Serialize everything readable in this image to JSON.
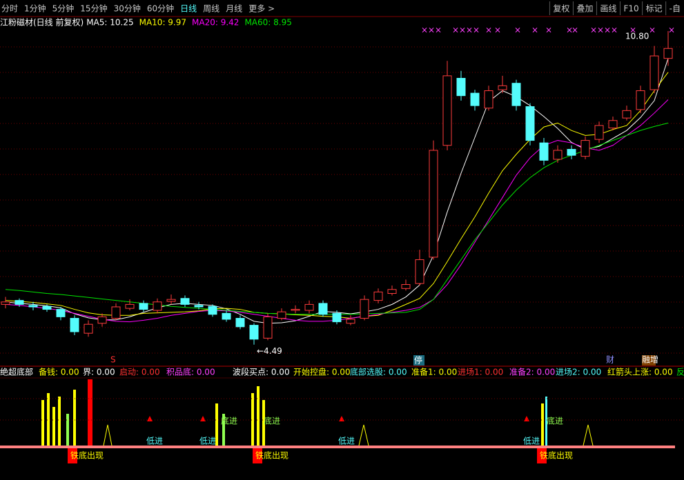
{
  "toolbar": {
    "left": [
      "分时",
      "1分钟",
      "5分钟",
      "15分钟",
      "30分钟",
      "60分钟",
      "日线",
      "周线",
      "月线",
      "更多 >"
    ],
    "right": [
      "复权",
      "叠加",
      "画线",
      "F10",
      "标记",
      "-自"
    ]
  },
  "chart_data": {
    "type": "candlestick",
    "title": "江粉磁材(日线 前复权)",
    "ylim": [
      4.07,
      10.87
    ],
    "open": [
      5.3,
      5.38,
      5.28,
      5.26,
      5.2,
      5.02,
      4.72,
      4.92,
      5.02,
      5.22,
      5.32,
      5.18,
      5.36,
      5.42,
      5.28,
      5.26,
      5.12,
      5.02,
      4.88,
      4.62,
      5.02,
      5.18,
      5.18,
      5.32,
      5.12,
      4.92,
      5.02,
      5.38,
      5.52,
      5.62,
      5.72,
      6.25,
      8.5,
      9.85,
      9.55,
      9.25,
      9.62,
      9.75,
      9.28,
      8.55,
      8.22,
      8.42,
      8.28,
      8.62,
      8.85,
      9.05,
      9.22,
      9.62,
      10.25
    ],
    "high": [
      5.45,
      5.42,
      5.35,
      5.3,
      5.25,
      5.08,
      4.98,
      5.12,
      5.32,
      5.4,
      5.38,
      5.42,
      5.5,
      5.48,
      5.35,
      5.3,
      5.18,
      5.08,
      4.92,
      5.12,
      5.22,
      5.28,
      5.38,
      5.38,
      5.18,
      5.08,
      5.48,
      5.62,
      5.68,
      5.8,
      6.4,
      8.6,
      10.2,
      10.0,
      9.62,
      9.7,
      9.9,
      9.82,
      9.35,
      8.65,
      8.5,
      8.5,
      8.68,
      8.98,
      9.08,
      9.3,
      9.7,
      10.5,
      10.8
    ],
    "low": [
      5.22,
      5.25,
      5.18,
      5.15,
      4.98,
      4.68,
      4.65,
      4.85,
      4.98,
      5.18,
      5.15,
      5.12,
      5.3,
      5.25,
      5.2,
      5.05,
      4.95,
      4.8,
      4.49,
      4.58,
      4.98,
      5.12,
      5.12,
      5.05,
      4.9,
      4.88,
      4.98,
      5.32,
      5.48,
      5.58,
      5.68,
      6.2,
      8.4,
      9.4,
      9.2,
      9.2,
      9.55,
      9.2,
      8.5,
      8.1,
      8.15,
      8.22,
      8.22,
      8.55,
      8.8,
      9.0,
      9.15,
      9.55,
      10.1
    ],
    "close": [
      5.35,
      5.3,
      5.25,
      5.2,
      5.05,
      4.75,
      4.9,
      5.05,
      5.25,
      5.3,
      5.2,
      5.35,
      5.4,
      5.3,
      5.25,
      5.1,
      5.0,
      4.85,
      4.6,
      5.05,
      5.15,
      5.2,
      5.3,
      5.1,
      4.95,
      5.0,
      5.4,
      5.55,
      5.6,
      5.7,
      6.2,
      8.4,
      9.9,
      9.5,
      9.3,
      9.6,
      9.7,
      9.3,
      8.6,
      8.2,
      8.4,
      8.3,
      8.6,
      8.9,
      9.0,
      9.2,
      9.6,
      10.3,
      10.45
    ],
    "up_color": "#ff3c3c",
    "down_color": "#54fcfc",
    "series": [
      {
        "name": "MA5: 10.25",
        "color": "#ffffff",
        "values": [
          5.35,
          5.32,
          5.3,
          5.27,
          5.23,
          5.11,
          5.03,
          4.99,
          4.99,
          5.05,
          5.14,
          5.23,
          5.3,
          5.32,
          5.3,
          5.28,
          5.21,
          5.1,
          4.96,
          4.92,
          4.93,
          4.97,
          5.06,
          5.16,
          5.14,
          5.11,
          5.15,
          5.2,
          5.3,
          5.45,
          5.69,
          6.29,
          7.16,
          7.94,
          8.66,
          9.38,
          9.6,
          9.48,
          9.3,
          9.08,
          8.84,
          8.56,
          8.42,
          8.48,
          8.64,
          8.8,
          9.06,
          9.4,
          10.25
        ]
      },
      {
        "name": "MA10: 9.97",
        "color": "#ffff00",
        "values": [
          5.38,
          5.36,
          5.34,
          5.31,
          5.28,
          5.2,
          5.13,
          5.09,
          5.08,
          5.08,
          5.12,
          5.13,
          5.14,
          5.15,
          5.17,
          5.21,
          5.22,
          5.2,
          5.14,
          5.12,
          5.11,
          5.09,
          5.08,
          5.06,
          5.05,
          5.02,
          5.06,
          5.08,
          5.18,
          5.3,
          5.42,
          5.72,
          6.16,
          6.62,
          7.06,
          7.54,
          7.99,
          8.32,
          8.62,
          8.87,
          8.95,
          8.8,
          8.7,
          8.72,
          8.82,
          8.9,
          9.2,
          9.6,
          9.97
        ]
      },
      {
        "name": "MA20: 9.42",
        "color": "#ff00ff",
        "values": [
          5.3,
          5.28,
          5.25,
          5.22,
          5.18,
          5.12,
          5.06,
          5.0,
          4.96,
          4.95,
          4.98,
          5.02,
          5.08,
          5.12,
          5.16,
          5.18,
          5.17,
          5.14,
          5.1,
          5.06,
          5.02,
          4.98,
          4.96,
          4.96,
          4.98,
          5.02,
          5.06,
          5.1,
          5.14,
          5.18,
          5.24,
          5.4,
          5.7,
          6.1,
          6.55,
          7.0,
          7.45,
          7.9,
          8.25,
          8.5,
          8.6,
          8.55,
          8.45,
          8.4,
          8.5,
          8.7,
          8.9,
          9.15,
          9.42
        ]
      },
      {
        "name": "MA60: 8.95",
        "color": "#00e600",
        "values": [
          5.6,
          5.58,
          5.55,
          5.52,
          5.5,
          5.47,
          5.44,
          5.41,
          5.38,
          5.35,
          5.32,
          5.29,
          5.26,
          5.24,
          5.22,
          5.2,
          5.18,
          5.16,
          5.14,
          5.12,
          5.11,
          5.1,
          5.1,
          5.1,
          5.1,
          5.1,
          5.11,
          5.12,
          5.13,
          5.14,
          5.2,
          5.4,
          5.8,
          6.2,
          6.6,
          6.95,
          7.3,
          7.6,
          7.85,
          8.05,
          8.2,
          8.3,
          8.4,
          8.5,
          8.6,
          8.7,
          8.8,
          8.88,
          8.95
        ]
      }
    ],
    "annotations": {
      "high": 10.8,
      "high_label": "10.80",
      "low": 4.49,
      "low_label": "←4.49"
    }
  },
  "markers": [
    "S",
    "停",
    "财",
    "融增"
  ],
  "indicator": {
    "labels": [
      "绝超底部",
      "备钱: 0.00",
      "界: 0.00",
      "启动: 0.00",
      "积品底: 0.00",
      "波段买点: 0.00",
      "开始控盘: 0.00",
      "底部选股: 0.00",
      "准备1: 0.00",
      "进场1: 0.00",
      "准备2: 0.00",
      "进场2: 0.00",
      "红箭头上涨: 0.00",
      "反"
    ],
    "signals": [
      "铁底出现",
      "铁底出现",
      "铁底出现",
      "低进",
      "低进",
      "低进",
      "低进",
      "底进",
      "底进",
      "底进"
    ]
  }
}
